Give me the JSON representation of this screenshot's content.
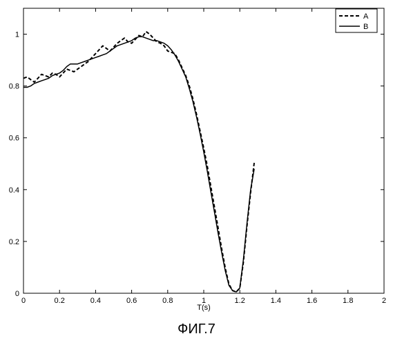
{
  "figure": {
    "caption": "ФИГ.7"
  },
  "chart_data": {
    "type": "line",
    "xlabel": "T(s)",
    "ylabel": "",
    "xlim": [
      0,
      2
    ],
    "ylim": [
      0,
      1.1
    ],
    "xticks": [
      0,
      0.2,
      0.4,
      0.6,
      0.8,
      1,
      1.2,
      1.4,
      1.6,
      1.8,
      2
    ],
    "xtick_labels": [
      "0",
      "0.2",
      "0.4",
      "0.6",
      "0.8",
      "1",
      "1.2",
      "1.4",
      "1.6",
      "1.8",
      "2"
    ],
    "yticks": [
      0,
      0.2,
      0.4,
      0.6,
      0.8,
      1
    ],
    "ytick_labels": [
      "0",
      "0.2",
      "0.4",
      "0.6",
      "0.8",
      "1"
    ],
    "grid": false,
    "legend_position": "top-right",
    "series": [
      {
        "name": "A",
        "style": "dashed",
        "color": "#000000",
        "x": [
          0,
          0.02,
          0.04,
          0.06,
          0.08,
          0.1,
          0.12,
          0.14,
          0.16,
          0.18,
          0.2,
          0.22,
          0.24,
          0.26,
          0.28,
          0.3,
          0.32,
          0.34,
          0.36,
          0.38,
          0.4,
          0.42,
          0.44,
          0.46,
          0.48,
          0.5,
          0.52,
          0.54,
          0.56,
          0.58,
          0.6,
          0.62,
          0.64,
          0.66,
          0.68,
          0.7,
          0.72,
          0.74,
          0.76,
          0.78,
          0.8,
          0.82,
          0.84,
          0.86,
          0.88,
          0.9,
          0.92,
          0.94,
          0.96,
          0.98,
          1.0,
          1.02,
          1.04,
          1.06,
          1.08,
          1.1,
          1.12,
          1.14,
          1.16,
          1.18,
          1.2,
          1.22,
          1.24,
          1.26,
          1.28
        ],
        "y": [
          0.83,
          0.835,
          0.825,
          0.815,
          0.83,
          0.845,
          0.84,
          0.835,
          0.85,
          0.845,
          0.835,
          0.85,
          0.865,
          0.86,
          0.855,
          0.865,
          0.875,
          0.885,
          0.895,
          0.91,
          0.925,
          0.94,
          0.955,
          0.945,
          0.935,
          0.95,
          0.965,
          0.975,
          0.985,
          0.97,
          0.965,
          0.98,
          0.995,
          0.99,
          1.01,
          1.0,
          0.985,
          0.97,
          0.965,
          0.955,
          0.935,
          0.93,
          0.925,
          0.9,
          0.87,
          0.84,
          0.8,
          0.75,
          0.69,
          0.625,
          0.56,
          0.49,
          0.41,
          0.33,
          0.25,
          0.17,
          0.095,
          0.035,
          0.01,
          0.005,
          0.02,
          0.12,
          0.26,
          0.39,
          0.505
        ]
      },
      {
        "name": "B",
        "style": "solid",
        "color": "#000000",
        "x": [
          0,
          0.02,
          0.04,
          0.06,
          0.08,
          0.1,
          0.12,
          0.14,
          0.16,
          0.18,
          0.2,
          0.22,
          0.24,
          0.26,
          0.28,
          0.3,
          0.32,
          0.34,
          0.36,
          0.38,
          0.4,
          0.42,
          0.44,
          0.46,
          0.48,
          0.5,
          0.52,
          0.54,
          0.56,
          0.58,
          0.6,
          0.62,
          0.64,
          0.66,
          0.68,
          0.7,
          0.72,
          0.74,
          0.76,
          0.78,
          0.8,
          0.82,
          0.84,
          0.86,
          0.88,
          0.9,
          0.92,
          0.94,
          0.96,
          0.98,
          1.0,
          1.02,
          1.04,
          1.06,
          1.08,
          1.1,
          1.12,
          1.14,
          1.16,
          1.18,
          1.2,
          1.22,
          1.24,
          1.26,
          1.28
        ],
        "y": [
          0.795,
          0.795,
          0.8,
          0.81,
          0.815,
          0.82,
          0.825,
          0.83,
          0.84,
          0.845,
          0.85,
          0.86,
          0.875,
          0.885,
          0.885,
          0.885,
          0.89,
          0.895,
          0.9,
          0.905,
          0.91,
          0.915,
          0.92,
          0.925,
          0.935,
          0.945,
          0.955,
          0.96,
          0.965,
          0.97,
          0.975,
          0.985,
          0.99,
          0.99,
          0.985,
          0.98,
          0.975,
          0.975,
          0.97,
          0.965,
          0.955,
          0.94,
          0.92,
          0.895,
          0.865,
          0.835,
          0.79,
          0.74,
          0.68,
          0.615,
          0.545,
          0.47,
          0.39,
          0.31,
          0.23,
          0.155,
          0.085,
          0.03,
          0.01,
          0.005,
          0.02,
          0.13,
          0.27,
          0.4,
          0.48
        ]
      }
    ]
  }
}
